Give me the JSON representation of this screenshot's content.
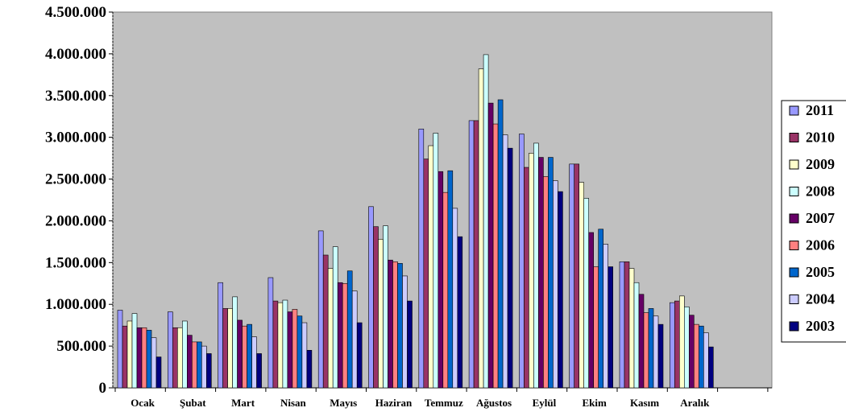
{
  "chart_data": {
    "type": "bar",
    "title": "",
    "xlabel": "",
    "ylabel": "",
    "ylim": [
      0,
      4500000
    ],
    "yticks": [
      0,
      500000,
      1000000,
      1500000,
      2000000,
      2500000,
      3000000,
      3500000,
      4000000,
      4500000
    ],
    "ytick_labels": [
      "0",
      "500.000",
      "1.000.000",
      "1.500.000",
      "2.000.000",
      "2.500.000",
      "3.000.000",
      "3.500.000",
      "4.000.000",
      "4.500.000"
    ],
    "grid": false,
    "legend_position": "right",
    "plot_background": "#c0c0c0",
    "categories": [
      "Ocak",
      "Şubat",
      "Mart",
      "Nisan",
      "Mayıs",
      "Haziran",
      "Temmuz",
      "Ağustos",
      "Eylül",
      "Ekim",
      "Kasım",
      "Aralık"
    ],
    "series": [
      {
        "name": "2011",
        "color": "#9999ff",
        "values": [
          930000,
          910000,
          1260000,
          1320000,
          1880000,
          2170000,
          3100000,
          3200000,
          3040000,
          2680000,
          1510000,
          1020000
        ]
      },
      {
        "name": "2010",
        "color": "#993366",
        "values": [
          740000,
          720000,
          950000,
          1040000,
          1590000,
          1930000,
          2740000,
          3200000,
          2640000,
          2680000,
          1510000,
          1040000
        ]
      },
      {
        "name": "2009",
        "color": "#ffffcc",
        "values": [
          800000,
          720000,
          950000,
          1020000,
          1430000,
          1780000,
          2900000,
          3820000,
          2810000,
          2460000,
          1430000,
          1100000
        ]
      },
      {
        "name": "2008",
        "color": "#ccffff",
        "values": [
          890000,
          800000,
          1090000,
          1050000,
          1690000,
          1940000,
          3050000,
          3990000,
          2930000,
          2270000,
          1260000,
          970000
        ]
      },
      {
        "name": "2007",
        "color": "#660066",
        "values": [
          720000,
          630000,
          810000,
          910000,
          1260000,
          1530000,
          2590000,
          3410000,
          2760000,
          1860000,
          1120000,
          870000
        ]
      },
      {
        "name": "2006",
        "color": "#ff8080",
        "values": [
          720000,
          550000,
          740000,
          940000,
          1250000,
          1510000,
          2340000,
          3160000,
          2530000,
          1450000,
          900000,
          760000
        ]
      },
      {
        "name": "2005",
        "color": "#0066cc",
        "values": [
          690000,
          550000,
          760000,
          860000,
          1400000,
          1490000,
          2600000,
          3450000,
          2760000,
          1900000,
          950000,
          740000
        ]
      },
      {
        "name": "2004",
        "color": "#ccccff",
        "values": [
          600000,
          500000,
          610000,
          780000,
          1160000,
          1340000,
          2150000,
          3030000,
          2480000,
          1720000,
          860000,
          660000
        ]
      },
      {
        "name": "2003",
        "color": "#000080",
        "values": [
          370000,
          410000,
          410000,
          450000,
          780000,
          1040000,
          1810000,
          2870000,
          2350000,
          1450000,
          760000,
          490000
        ]
      }
    ]
  }
}
